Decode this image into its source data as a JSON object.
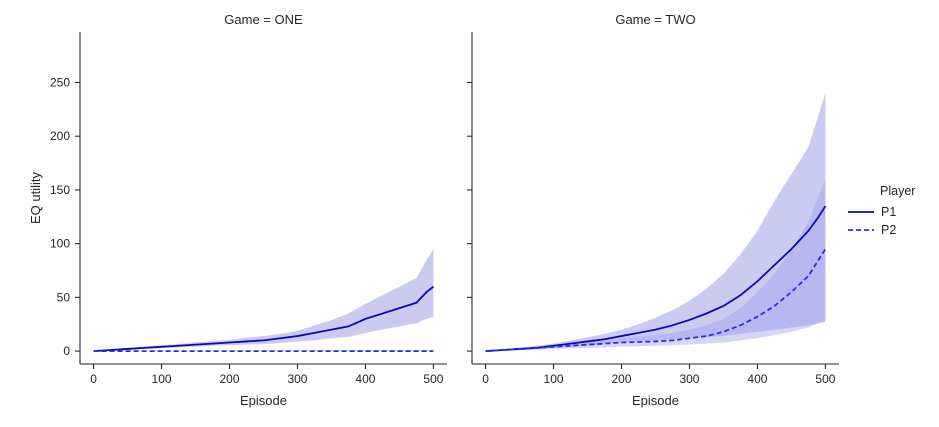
{
  "chart_data": {
    "type": "line",
    "legend": {
      "title": "Player",
      "placement": "right"
    },
    "colors": {
      "P1": "#0a0ab4",
      "P2": "#2b2bea",
      "band_P1": "#8c8ce0",
      "band_P2": "#a2a2f0"
    },
    "series_styles": [
      {
        "name": "P1",
        "dash": "solid"
      },
      {
        "name": "P2",
        "dash": "dashed"
      }
    ],
    "xlabel": "Episode",
    "ylabel": "EQ utility",
    "xlim": [
      -20,
      520
    ],
    "ylim": [
      -12,
      297
    ],
    "xticks": [
      0,
      100,
      200,
      300,
      400,
      500
    ],
    "yticks": [
      0,
      50,
      100,
      150,
      200,
      250
    ],
    "grid": false,
    "panels": [
      {
        "title": "Game = ONE",
        "series": [
          {
            "name": "P1",
            "x": [
              0,
              25,
              50,
              75,
              100,
              125,
              150,
              175,
              200,
              225,
              250,
              275,
              300,
              325,
              350,
              375,
              400,
              425,
              450,
              475,
              490,
              500
            ],
            "y": [
              0,
              1,
              2,
              3,
              4,
              5,
              6,
              7,
              8,
              9,
              10,
              12,
              14,
              17,
              20,
              23,
              30,
              35,
              40,
              45,
              55,
              60
            ],
            "lower": [
              0,
              0.5,
              1,
              2,
              3,
              3.5,
              4,
              5,
              5.5,
              6,
              6.5,
              7.5,
              9,
              10,
              12,
              13,
              17,
              20,
              23,
              26,
              30,
              32
            ],
            "upper": [
              0.5,
              1.5,
              3,
              4.5,
              5.5,
              6.5,
              8,
              9.5,
              10.5,
              12.5,
              14,
              16,
              19,
              24,
              29,
              35,
              44,
              52,
              60,
              68,
              85,
              95
            ]
          },
          {
            "name": "P2",
            "x": [
              0,
              100,
              200,
              300,
              400,
              500
            ],
            "y": [
              0,
              0,
              0,
              0,
              0,
              0
            ],
            "lower": [
              0,
              0,
              0,
              0,
              0,
              0
            ],
            "upper": [
              0,
              0.3,
              0.5,
              0.7,
              1,
              1
            ]
          }
        ]
      },
      {
        "title": "Game = TWO",
        "series": [
          {
            "name": "P1",
            "x": [
              0,
              25,
              50,
              75,
              100,
              125,
              150,
              175,
              200,
              225,
              250,
              275,
              300,
              325,
              350,
              375,
              400,
              425,
              450,
              475,
              490,
              500
            ],
            "y": [
              0,
              1,
              2,
              3,
              5,
              7,
              9,
              11,
              14,
              17,
              20,
              24,
              29,
              35,
              42,
              52,
              65,
              80,
              95,
              112,
              125,
              135
            ],
            "lower": [
              0,
              0.5,
              1,
              1.5,
              3,
              4,
              5,
              6.5,
              8,
              9,
              10,
              11,
              12,
              13,
              14,
              16,
              18,
              20,
              22,
              24,
              26,
              27
            ],
            "upper": [
              0.5,
              1.5,
              3,
              5,
              7,
              10,
              13,
              16,
              20,
              25,
              31,
              38,
              47,
              58,
              72,
              90,
              112,
              140,
              165,
              190,
              220,
              240
            ]
          },
          {
            "name": "P2",
            "x": [
              0,
              25,
              50,
              75,
              100,
              125,
              150,
              175,
              200,
              225,
              250,
              275,
              300,
              325,
              350,
              375,
              400,
              425,
              450,
              475,
              490,
              500
            ],
            "y": [
              0,
              1,
              2,
              3,
              4,
              5,
              6,
              7,
              8,
              8.5,
              9,
              10,
              12,
              14,
              18,
              24,
              32,
              42,
              55,
              70,
              85,
              95
            ],
            "lower": [
              0,
              0.5,
              1,
              1.5,
              2,
              2.5,
              3,
              3.5,
              4,
              4.5,
              5,
              5.5,
              6,
              7,
              8,
              10,
              12,
              15,
              18,
              22,
              26,
              28
            ],
            "upper": [
              0.5,
              1.5,
              3,
              4.5,
              6,
              7,
              8.5,
              10,
              12,
              13.5,
              15,
              17,
              20,
              24,
              30,
              40,
              55,
              72,
              95,
              120,
              145,
              160
            ]
          }
        ]
      }
    ]
  }
}
